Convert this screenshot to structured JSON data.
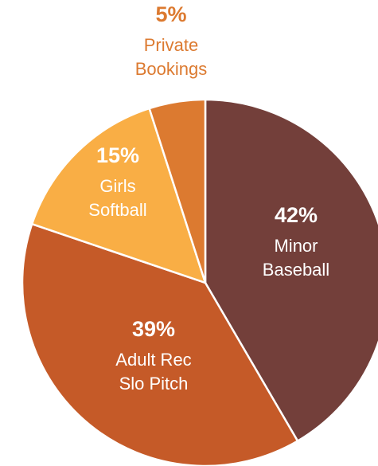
{
  "chart_data": {
    "type": "pie",
    "categories": [
      [
        "Minor",
        "Baseball"
      ],
      [
        "Adult Rec",
        "Slo Pitch"
      ],
      [
        "Girls",
        "Softball"
      ],
      [
        "Private",
        "Bookings"
      ]
    ],
    "values": [
      42,
      39,
      15,
      5
    ],
    "value_labels": [
      "42%",
      "39%",
      "15%",
      "5%"
    ],
    "colors": [
      "#733f3a",
      "#c55a28",
      "#f9ae45",
      "#dc7a30"
    ],
    "label_colors": [
      "#ffffff",
      "#ffffff",
      "#ffffff",
      "#dc7a30"
    ]
  }
}
